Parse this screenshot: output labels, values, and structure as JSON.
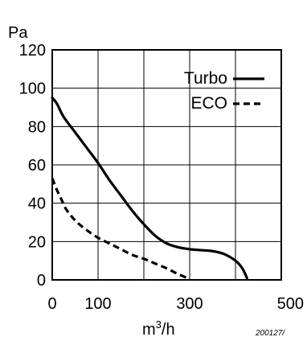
{
  "chart_data": {
    "type": "line",
    "ylabel": "Pa",
    "xlabel_base": "m",
    "xlabel_sup": "3",
    "xlabel_tail": "/h",
    "xlim": [
      0,
      500
    ],
    "ylim": [
      0,
      120
    ],
    "x_ticks": [
      0,
      100,
      300,
      500
    ],
    "x_tick_labels": [
      "0",
      "100",
      "300",
      "500"
    ],
    "x_gridlines": [
      100,
      200,
      300,
      400
    ],
    "y_ticks": [
      0,
      20,
      40,
      60,
      80,
      100,
      120
    ],
    "y_tick_labels": [
      "0",
      "20",
      "40",
      "60",
      "80",
      "100",
      "120"
    ],
    "grid": true,
    "legend_position": "top-right",
    "series": [
      {
        "name": "Turbo",
        "style": "solid",
        "x": [
          0,
          10,
          25,
          50,
          75,
          100,
          125,
          150,
          175,
          200,
          225,
          250,
          275,
          300,
          325,
          350,
          375,
          400,
          415,
          425
        ],
        "y": [
          95,
          92,
          85,
          77,
          69,
          61,
          52,
          44,
          36,
          29,
          23,
          19,
          17,
          16,
          15.5,
          15,
          13.5,
          10,
          6,
          1
        ]
      },
      {
        "name": "ECO",
        "style": "dashed",
        "x": [
          0,
          10,
          20,
          30,
          50,
          75,
          100,
          125,
          150,
          175,
          200,
          225,
          250,
          275,
          300
        ],
        "y": [
          53,
          47,
          42,
          37,
          31,
          26,
          22,
          19,
          16,
          13,
          11,
          8.5,
          6,
          3,
          0.5
        ]
      }
    ],
    "figure_code": "200127/"
  },
  "colors": {
    "line": "#000000",
    "grid": "#000000",
    "background": "#ffffff"
  }
}
